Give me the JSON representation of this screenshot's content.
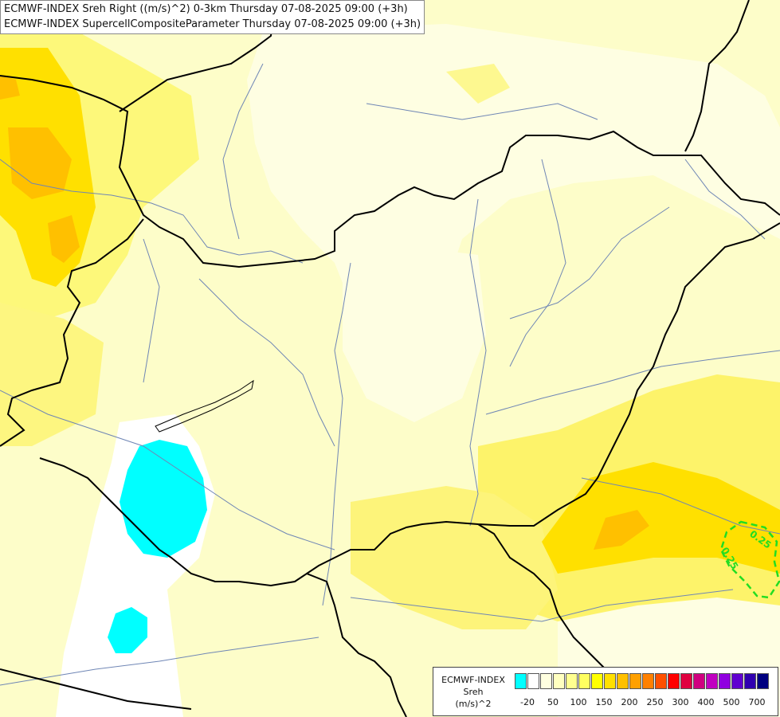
{
  "title": {
    "line1": "ECMWF-INDEX Sreh Right ((m/s)^2) 0-3km Thursday 07-08-2025 09:00 (+3h)",
    "line2": "ECMWF-INDEX SupercellCompositeParameter Thursday 07-08-2025 09:00 (+3h)"
  },
  "legend": {
    "line1": "ECMWF-INDEX",
    "line2": "Sreh",
    "line3": "(m/s)^2",
    "swatches": [
      "#00ffff",
      "#ffffff",
      "#ffffe0",
      "#ffffc0",
      "#ffff90",
      "#ffff60",
      "#ffff00",
      "#ffe000",
      "#ffc000",
      "#ffa000",
      "#ff8000",
      "#ff5000",
      "#ff0000",
      "#e00040",
      "#d00080",
      "#c000c0",
      "#9000e0",
      "#6000d0",
      "#3000b0",
      "#000080"
    ],
    "ticks": [
      "-20",
      "50",
      "100",
      "150",
      "200",
      "250",
      "300",
      "400",
      "500",
      "700"
    ]
  },
  "contours": {
    "label_a": "0.25",
    "label_b": "0.25",
    "color": "#22dd22"
  },
  "colors": {
    "background": "#fdfdc9",
    "border": "#000000",
    "river": "#6f86b5"
  }
}
